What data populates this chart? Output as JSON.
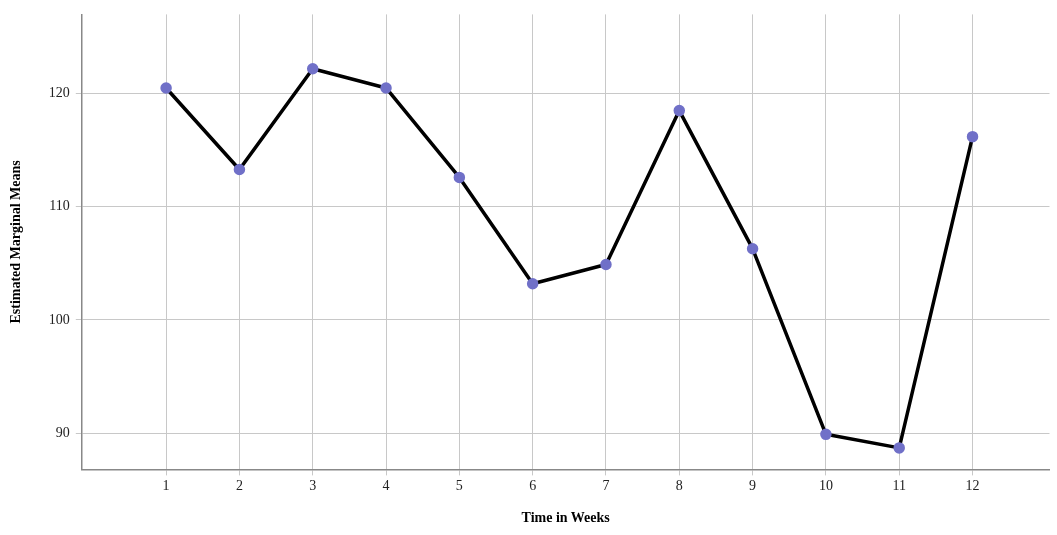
{
  "chart_data": {
    "type": "line",
    "xlabel": "Time in Weeks",
    "ylabel": "Estimated Marginal Means",
    "x": [
      1,
      2,
      3,
      4,
      5,
      6,
      7,
      8,
      9,
      10,
      11,
      12
    ],
    "series": [
      {
        "color": "#000000",
        "colors": [
          "#7070c8",
          "#7070c8",
          "#7070c8",
          "#7070c8",
          "#7070c8",
          "#7070c8",
          "#7070c8",
          "#7070c8",
          "#7070c8",
          "#7070c8",
          "#7070c8",
          "#7070c8"
        ],
        "values": [
          120.5,
          113.3,
          122.2,
          120.5,
          112.6,
          103.2,
          104.9,
          118.5,
          106.3,
          89.9,
          88.7,
          116.2
        ]
      }
    ],
    "xlim": [
      -0.15,
      13.05
    ],
    "xticks": [
      1,
      2,
      3,
      4,
      5,
      6,
      7,
      8,
      9,
      10,
      11,
      12
    ],
    "ylim": [
      86.8,
      127
    ],
    "yticks": [
      90,
      100,
      110,
      120
    ],
    "grid": true,
    "marker": "circle",
    "line_style": "solid",
    "legend": false
  }
}
